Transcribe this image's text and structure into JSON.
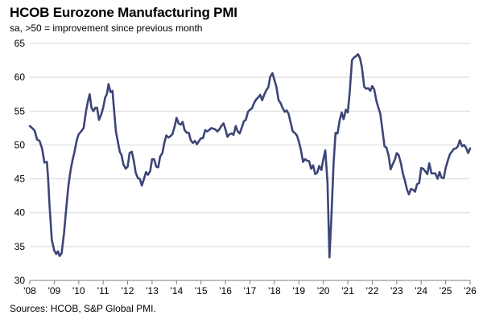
{
  "chart_data": {
    "type": "line",
    "title": "HCOB Eurozone Manufacturing PMI",
    "subtitle": "sa, >50 = improvement  since previous month",
    "source": "Sources: HCOB, S&P Global PMI.",
    "ylim": [
      30,
      65
    ],
    "yticks": [
      30,
      35,
      40,
      45,
      50,
      55,
      60,
      65
    ],
    "xlim": [
      2008.0,
      2026.0
    ],
    "xticks": [
      {
        "value": 2008,
        "label": "'08"
      },
      {
        "value": 2009,
        "label": "'09"
      },
      {
        "value": 2010,
        "label": "'10"
      },
      {
        "value": 2011,
        "label": "'11"
      },
      {
        "value": 2012,
        "label": "'12"
      },
      {
        "value": 2013,
        "label": "'13"
      },
      {
        "value": 2014,
        "label": "'14"
      },
      {
        "value": 2015,
        "label": "'15"
      },
      {
        "value": 2016,
        "label": "'16"
      },
      {
        "value": 2017,
        "label": "'17"
      },
      {
        "value": 2018,
        "label": "'18"
      },
      {
        "value": 2019,
        "label": "'19"
      },
      {
        "value": 2020,
        "label": "'20"
      },
      {
        "value": 2021,
        "label": "'21"
      },
      {
        "value": 2022,
        "label": "'22"
      },
      {
        "value": 2023,
        "label": "'23"
      },
      {
        "value": 2024,
        "label": "'24"
      },
      {
        "value": 2025,
        "label": "'25"
      },
      {
        "value": 2026,
        "label": "'26"
      }
    ],
    "grid": "horizontal",
    "line_color": "#3d4578",
    "series": [
      {
        "points": [
          [
            2008.0,
            52.8
          ],
          [
            2008.1,
            52.5
          ],
          [
            2008.2,
            52.1
          ],
          [
            2008.3,
            50.8
          ],
          [
            2008.4,
            50.6
          ],
          [
            2008.5,
            49.5
          ],
          [
            2008.6,
            47.4
          ],
          [
            2008.7,
            47.5
          ],
          [
            2008.75,
            45.0
          ],
          [
            2008.8,
            41.5
          ],
          [
            2008.9,
            36.0
          ],
          [
            2009.0,
            34.4
          ],
          [
            2009.08,
            33.9
          ],
          [
            2009.15,
            34.3
          ],
          [
            2009.22,
            33.6
          ],
          [
            2009.3,
            34.0
          ],
          [
            2009.4,
            37.0
          ],
          [
            2009.5,
            41.0
          ],
          [
            2009.58,
            44.0
          ],
          [
            2009.67,
            46.3
          ],
          [
            2009.75,
            47.8
          ],
          [
            2009.83,
            49.0
          ],
          [
            2009.92,
            50.7
          ],
          [
            2010.0,
            51.6
          ],
          [
            2010.1,
            52.0
          ],
          [
            2010.2,
            52.5
          ],
          [
            2010.3,
            55.0
          ],
          [
            2010.38,
            56.5
          ],
          [
            2010.45,
            57.5
          ],
          [
            2010.52,
            55.5
          ],
          [
            2010.6,
            55.0
          ],
          [
            2010.68,
            55.5
          ],
          [
            2010.75,
            55.5
          ],
          [
            2010.83,
            53.7
          ],
          [
            2010.92,
            54.5
          ],
          [
            2011.0,
            55.5
          ],
          [
            2011.08,
            57.0
          ],
          [
            2011.15,
            57.5
          ],
          [
            2011.22,
            59.0
          ],
          [
            2011.3,
            57.8
          ],
          [
            2011.38,
            58.0
          ],
          [
            2011.45,
            55.0
          ],
          [
            2011.52,
            52.0
          ],
          [
            2011.6,
            50.5
          ],
          [
            2011.68,
            49.0
          ],
          [
            2011.75,
            48.5
          ],
          [
            2011.83,
            47.1
          ],
          [
            2011.92,
            46.5
          ],
          [
            2012.0,
            46.8
          ],
          [
            2012.08,
            48.8
          ],
          [
            2012.17,
            49.0
          ],
          [
            2012.25,
            47.7
          ],
          [
            2012.33,
            45.9
          ],
          [
            2012.42,
            45.1
          ],
          [
            2012.5,
            45.0
          ],
          [
            2012.58,
            44.0
          ],
          [
            2012.67,
            45.0
          ],
          [
            2012.75,
            46.0
          ],
          [
            2012.83,
            45.6
          ],
          [
            2012.92,
            46.1
          ],
          [
            2013.0,
            47.9
          ],
          [
            2013.08,
            47.9
          ],
          [
            2013.17,
            46.8
          ],
          [
            2013.25,
            46.7
          ],
          [
            2013.33,
            48.3
          ],
          [
            2013.42,
            48.8
          ],
          [
            2013.5,
            50.3
          ],
          [
            2013.58,
            51.4
          ],
          [
            2013.67,
            51.1
          ],
          [
            2013.75,
            51.3
          ],
          [
            2013.83,
            51.6
          ],
          [
            2013.92,
            52.7
          ],
          [
            2014.0,
            54.0
          ],
          [
            2014.08,
            53.2
          ],
          [
            2014.17,
            53.0
          ],
          [
            2014.25,
            53.4
          ],
          [
            2014.33,
            52.2
          ],
          [
            2014.42,
            51.8
          ],
          [
            2014.5,
            51.8
          ],
          [
            2014.58,
            50.7
          ],
          [
            2014.67,
            50.3
          ],
          [
            2014.75,
            50.6
          ],
          [
            2014.83,
            50.1
          ],
          [
            2014.92,
            50.6
          ],
          [
            2015.0,
            51.0
          ],
          [
            2015.08,
            51.0
          ],
          [
            2015.17,
            52.2
          ],
          [
            2015.25,
            52.0
          ],
          [
            2015.33,
            52.2
          ],
          [
            2015.42,
            52.5
          ],
          [
            2015.5,
            52.4
          ],
          [
            2015.58,
            52.3
          ],
          [
            2015.67,
            52.0
          ],
          [
            2015.75,
            52.3
          ],
          [
            2015.83,
            52.8
          ],
          [
            2015.92,
            53.2
          ],
          [
            2016.0,
            52.3
          ],
          [
            2016.08,
            51.2
          ],
          [
            2016.17,
            51.6
          ],
          [
            2016.25,
            51.7
          ],
          [
            2016.33,
            51.5
          ],
          [
            2016.42,
            52.8
          ],
          [
            2016.5,
            52.0
          ],
          [
            2016.58,
            51.7
          ],
          [
            2016.67,
            52.6
          ],
          [
            2016.75,
            53.5
          ],
          [
            2016.83,
            53.7
          ],
          [
            2016.92,
            54.9
          ],
          [
            2017.0,
            55.2
          ],
          [
            2017.08,
            55.4
          ],
          [
            2017.17,
            56.2
          ],
          [
            2017.25,
            56.7
          ],
          [
            2017.33,
            57.0
          ],
          [
            2017.42,
            57.4
          ],
          [
            2017.5,
            56.6
          ],
          [
            2017.58,
            57.4
          ],
          [
            2017.67,
            58.1
          ],
          [
            2017.75,
            58.5
          ],
          [
            2017.83,
            60.1
          ],
          [
            2017.92,
            60.6
          ],
          [
            2018.0,
            59.6
          ],
          [
            2018.08,
            58.6
          ],
          [
            2018.17,
            56.6
          ],
          [
            2018.25,
            56.2
          ],
          [
            2018.33,
            55.5
          ],
          [
            2018.42,
            54.9
          ],
          [
            2018.5,
            55.1
          ],
          [
            2018.58,
            54.6
          ],
          [
            2018.67,
            53.2
          ],
          [
            2018.75,
            52.0
          ],
          [
            2018.83,
            51.8
          ],
          [
            2018.92,
            51.4
          ],
          [
            2019.0,
            50.5
          ],
          [
            2019.08,
            49.3
          ],
          [
            2019.17,
            47.5
          ],
          [
            2019.25,
            47.9
          ],
          [
            2019.33,
            47.7
          ],
          [
            2019.42,
            47.6
          ],
          [
            2019.5,
            46.5
          ],
          [
            2019.58,
            47.0
          ],
          [
            2019.67,
            45.7
          ],
          [
            2019.75,
            45.9
          ],
          [
            2019.83,
            46.9
          ],
          [
            2019.92,
            46.3
          ],
          [
            2020.0,
            47.9
          ],
          [
            2020.08,
            49.2
          ],
          [
            2020.17,
            44.5
          ],
          [
            2020.25,
            33.4
          ],
          [
            2020.33,
            39.4
          ],
          [
            2020.42,
            47.4
          ],
          [
            2020.5,
            51.8
          ],
          [
            2020.58,
            51.7
          ],
          [
            2020.67,
            53.7
          ],
          [
            2020.75,
            54.8
          ],
          [
            2020.83,
            53.8
          ],
          [
            2020.92,
            55.2
          ],
          [
            2021.0,
            54.8
          ],
          [
            2021.08,
            57.9
          ],
          [
            2021.17,
            62.5
          ],
          [
            2021.25,
            62.9
          ],
          [
            2021.33,
            63.1
          ],
          [
            2021.42,
            63.4
          ],
          [
            2021.5,
            62.8
          ],
          [
            2021.58,
            61.4
          ],
          [
            2021.67,
            58.6
          ],
          [
            2021.75,
            58.3
          ],
          [
            2021.83,
            58.4
          ],
          [
            2021.92,
            58.0
          ],
          [
            2022.0,
            58.7
          ],
          [
            2022.08,
            58.2
          ],
          [
            2022.17,
            56.5
          ],
          [
            2022.25,
            55.5
          ],
          [
            2022.33,
            54.6
          ],
          [
            2022.42,
            52.1
          ],
          [
            2022.5,
            49.8
          ],
          [
            2022.58,
            49.6
          ],
          [
            2022.67,
            48.4
          ],
          [
            2022.75,
            46.4
          ],
          [
            2022.83,
            47.1
          ],
          [
            2022.92,
            47.8
          ],
          [
            2023.0,
            48.8
          ],
          [
            2023.08,
            48.5
          ],
          [
            2023.17,
            47.3
          ],
          [
            2023.25,
            45.8
          ],
          [
            2023.33,
            44.8
          ],
          [
            2023.42,
            43.4
          ],
          [
            2023.5,
            42.7
          ],
          [
            2023.58,
            43.5
          ],
          [
            2023.67,
            43.4
          ],
          [
            2023.75,
            43.1
          ],
          [
            2023.83,
            44.2
          ],
          [
            2023.92,
            44.4
          ],
          [
            2024.0,
            46.6
          ],
          [
            2024.08,
            46.5
          ],
          [
            2024.17,
            46.1
          ],
          [
            2024.25,
            45.7
          ],
          [
            2024.33,
            47.3
          ],
          [
            2024.42,
            45.8
          ],
          [
            2024.5,
            45.8
          ],
          [
            2024.58,
            45.8
          ],
          [
            2024.67,
            45.0
          ],
          [
            2024.75,
            46.0
          ],
          [
            2024.83,
            45.2
          ],
          [
            2024.92,
            45.1
          ],
          [
            2025.0,
            46.6
          ],
          [
            2025.08,
            47.6
          ],
          [
            2025.17,
            48.6
          ],
          [
            2025.25,
            49.0
          ],
          [
            2025.33,
            49.4
          ],
          [
            2025.42,
            49.5
          ],
          [
            2025.5,
            49.8
          ],
          [
            2025.58,
            50.7
          ],
          [
            2025.67,
            49.8
          ],
          [
            2025.75,
            50.0
          ],
          [
            2025.83,
            49.6
          ],
          [
            2025.92,
            48.8
          ],
          [
            2026.0,
            49.5
          ]
        ]
      }
    ]
  }
}
